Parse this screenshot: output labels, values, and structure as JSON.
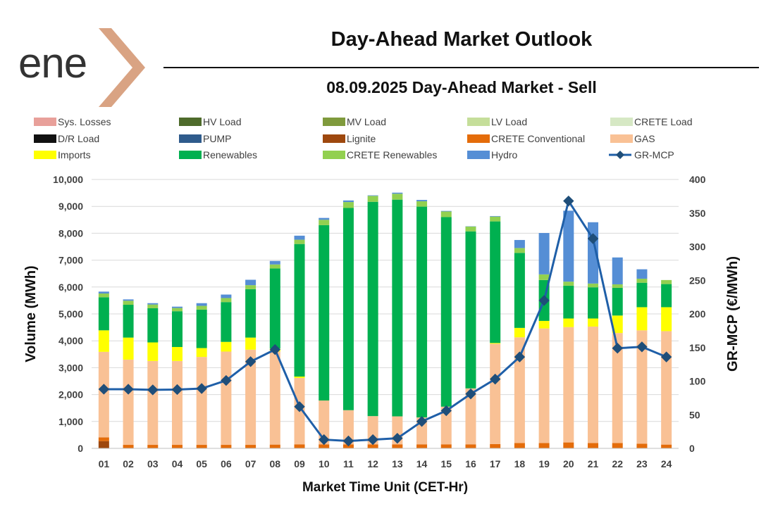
{
  "logo": {
    "text": "ene",
    "mark_color": "#d9a383",
    "text_color": "#333333"
  },
  "header": {
    "title": "Day-Ahead Market Outlook",
    "subtitle": "08.09.2025  Day-Ahead Market - Sell"
  },
  "chart_data": {
    "type": "bar",
    "stacked": true,
    "title": "08.09.2025  Day-Ahead Market - Sell",
    "xlabel": "Market Time Unit (CET-Hr)",
    "ylabel": "Volume (MWh)",
    "y2label": "GR-MCP (€/MWh)",
    "ylim": [
      0,
      10000
    ],
    "y2lim": [
      0,
      400
    ],
    "yticks": [
      "0",
      "1,000",
      "2,000",
      "3,000",
      "4,000",
      "5,000",
      "6,000",
      "7,000",
      "8,000",
      "9,000",
      "10,000"
    ],
    "y2ticks": [
      "0",
      "50",
      "100",
      "150",
      "200",
      "250",
      "300",
      "350",
      "400"
    ],
    "grid": true,
    "legend_position": "top",
    "categories": [
      "01",
      "02",
      "03",
      "04",
      "05",
      "06",
      "07",
      "08",
      "09",
      "10",
      "11",
      "12",
      "13",
      "14",
      "15",
      "16",
      "17",
      "18",
      "19",
      "20",
      "21",
      "22",
      "23",
      "24"
    ],
    "series": [
      {
        "name": "Sys. Losses",
        "color": "#e8a09a",
        "kind": "bar",
        "values": [
          0,
          0,
          0,
          0,
          0,
          0,
          0,
          0,
          0,
          0,
          0,
          0,
          0,
          0,
          0,
          0,
          0,
          0,
          0,
          0,
          0,
          0,
          0,
          0
        ]
      },
      {
        "name": "HV Load",
        "color": "#4e6b2b",
        "kind": "bar",
        "values": [
          0,
          0,
          0,
          0,
          0,
          0,
          0,
          0,
          0,
          0,
          0,
          0,
          0,
          0,
          0,
          0,
          0,
          0,
          0,
          0,
          0,
          0,
          0,
          0
        ]
      },
      {
        "name": "MV Load",
        "color": "#7f9a3c",
        "kind": "bar",
        "values": [
          0,
          0,
          0,
          0,
          0,
          0,
          0,
          0,
          0,
          0,
          0,
          0,
          0,
          0,
          0,
          0,
          0,
          0,
          0,
          0,
          0,
          0,
          0,
          0
        ]
      },
      {
        "name": "LV Load",
        "color": "#c5de9a",
        "kind": "bar",
        "values": [
          0,
          0,
          0,
          0,
          0,
          0,
          0,
          0,
          0,
          0,
          0,
          0,
          0,
          0,
          0,
          0,
          0,
          0,
          0,
          0,
          0,
          0,
          0,
          0
        ]
      },
      {
        "name": "CRETE Load",
        "color": "#d6e8c4",
        "kind": "bar",
        "values": [
          0,
          0,
          0,
          0,
          0,
          0,
          0,
          0,
          0,
          0,
          0,
          0,
          0,
          0,
          0,
          0,
          0,
          0,
          0,
          0,
          0,
          0,
          0,
          0
        ]
      },
      {
        "name": "D/R Load",
        "color": "#111111",
        "kind": "bar",
        "values": [
          0,
          0,
          0,
          0,
          0,
          0,
          0,
          0,
          0,
          0,
          0,
          0,
          0,
          0,
          0,
          0,
          0,
          0,
          0,
          0,
          0,
          0,
          0,
          0
        ]
      },
      {
        "name": "PUMP",
        "color": "#2f5b8c",
        "kind": "bar",
        "values": [
          0,
          0,
          0,
          0,
          0,
          0,
          0,
          0,
          0,
          0,
          0,
          0,
          0,
          0,
          0,
          0,
          0,
          0,
          0,
          0,
          0,
          0,
          0,
          0
        ]
      },
      {
        "name": "Lignite",
        "color": "#9e480e",
        "kind": "bar",
        "values": [
          270,
          0,
          0,
          0,
          0,
          0,
          0,
          0,
          0,
          0,
          0,
          0,
          0,
          0,
          0,
          0,
          0,
          0,
          0,
          0,
          0,
          0,
          0,
          0
        ]
      },
      {
        "name": "CRETE Conventional",
        "color": "#e46c0a",
        "kind": "bar",
        "values": [
          140,
          130,
          130,
          130,
          130,
          130,
          130,
          140,
          150,
          150,
          150,
          150,
          150,
          150,
          150,
          150,
          160,
          200,
          200,
          220,
          200,
          200,
          170,
          140
        ]
      },
      {
        "name": "GAS",
        "color": "#f9c195",
        "kind": "bar",
        "values": [
          3180,
          3170,
          3120,
          3120,
          3270,
          3470,
          3540,
          3460,
          2470,
          1630,
          1270,
          1050,
          1040,
          1000,
          1400,
          2080,
          3730,
          3930,
          4260,
          4290,
          4330,
          4090,
          4220,
          4220
        ]
      },
      {
        "name": "Imports",
        "color": "#ffff00",
        "kind": "bar",
        "values": [
          800,
          820,
          690,
          520,
          330,
          360,
          450,
          110,
          50,
          0,
          0,
          0,
          0,
          0,
          0,
          0,
          30,
          350,
          280,
          320,
          300,
          650,
          860,
          890
        ]
      },
      {
        "name": "Renewables",
        "color": "#00b050",
        "kind": "bar",
        "values": [
          1230,
          1220,
          1270,
          1330,
          1430,
          1480,
          1800,
          2980,
          4930,
          6520,
          7520,
          7970,
          8060,
          7840,
          7050,
          5840,
          4520,
          2790,
          1520,
          1220,
          1160,
          1030,
          910,
          860
        ]
      },
      {
        "name": "CRETE Renewables",
        "color": "#92d050",
        "kind": "bar",
        "values": [
          140,
          150,
          140,
          120,
          140,
          150,
          150,
          150,
          160,
          200,
          220,
          220,
          220,
          200,
          210,
          180,
          180,
          180,
          210,
          150,
          140,
          130,
          150,
          150
        ]
      },
      {
        "name": "Hydro",
        "color": "#558ed5",
        "kind": "bar",
        "values": [
          70,
          50,
          50,
          50,
          100,
          130,
          200,
          130,
          150,
          70,
          60,
          20,
          40,
          50,
          20,
          10,
          20,
          300,
          1540,
          2640,
          2280,
          1000,
          350,
          0
        ]
      },
      {
        "name": "GR-MCP",
        "color": "#1f5fa8",
        "kind": "line",
        "axis": "right",
        "values": [
          88,
          88,
          87,
          87.5,
          89,
          101,
          129,
          147,
          62,
          13,
          11,
          13,
          15,
          40,
          56,
          81,
          103,
          136,
          220,
          368,
          312,
          149,
          151,
          136
        ]
      }
    ]
  }
}
